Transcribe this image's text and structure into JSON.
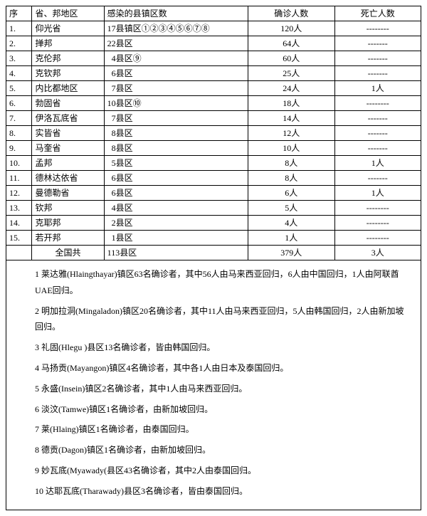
{
  "headers": {
    "seq": "序",
    "region": "省、邦地区",
    "infected": "感染的县镇区数",
    "confirmed": "确诊人数",
    "deaths": "死亡人数"
  },
  "rows": [
    {
      "seq": "1.",
      "region": "仰光省",
      "infected": "17县镇区①②③④⑤⑥⑦⑧",
      "confirmed": "120人",
      "deaths": "--------"
    },
    {
      "seq": "2.",
      "region": "掸邦",
      "infected": "22县区",
      "confirmed": "64人",
      "deaths": "-------"
    },
    {
      "seq": "3.",
      "region": "克伦邦",
      "infected": "  4县区⑨",
      "confirmed": "60人",
      "deaths": "-------"
    },
    {
      "seq": "4.",
      "region": "克钦邦",
      "infected": "  6县区",
      "confirmed": "25人",
      "deaths": "-------"
    },
    {
      "seq": "5.",
      "region": "内比都地区",
      "infected": "  7县区",
      "confirmed": "24人",
      "deaths": "1人"
    },
    {
      "seq": "6.",
      "region": "勃固省",
      "infected": "10县区⑩",
      "confirmed": "18人",
      "deaths": "--------"
    },
    {
      "seq": "7.",
      "region": "伊洛瓦底省",
      "infected": "  7县区",
      "confirmed": "14人",
      "deaths": "-------"
    },
    {
      "seq": "8.",
      "region": "实皆省",
      "infected": "  8县区",
      "confirmed": "12人",
      "deaths": "-------"
    },
    {
      "seq": "9.",
      "region": "马奎省",
      "infected": "  8县区",
      "confirmed": "10人",
      "deaths": "-------"
    },
    {
      "seq": "10.",
      "region": "孟邦",
      "infected": "  5县区",
      "confirmed": "8人",
      "deaths": "1人"
    },
    {
      "seq": "11.",
      "region": "德林达依省",
      "infected": "  6县区",
      "confirmed": "8人",
      "deaths": "-------"
    },
    {
      "seq": "12.",
      "region": "曼德勒省",
      "infected": "  6县区",
      "confirmed": "6人",
      "deaths": "1人"
    },
    {
      "seq": "13.",
      "region": "钦邦",
      "infected": "  4县区",
      "confirmed": "5人",
      "deaths": "--------"
    },
    {
      "seq": "14.",
      "region": "克耶邦",
      "infected": "  2县区",
      "confirmed": "4人",
      "deaths": "--------"
    },
    {
      "seq": "15.",
      "region": "若开邦",
      "infected": "  1县区",
      "confirmed": "1人",
      "deaths": "--------"
    }
  ],
  "total": {
    "seq": "",
    "region": "全国共",
    "infected": "113县区",
    "confirmed": "379人",
    "deaths": "3人"
  },
  "notes": [
    "1 莱达雅(Hlaingthayar)镇区63名确诊者，其中56人由马来西亚回归，6人由中国回归，1人由阿联酋UAE回归。",
    "2 明加拉洞(Mingaladon)镇区20名确诊者，其中11人由马来西亚回归，5人由韩国回归，2人由新加坡回归。",
    "3 礼固(Hlegu )县区13名确诊者，皆由韩国回归。",
    "4 马扬贡(Mayangon)镇区4名确诊者，其中各1人由日本及泰国回归。",
    "5 永盛(Insein)镇区2名确诊者，其中1人由马来西亚回归。",
    "6 淡汶(Tamwe)镇区1名确诊者，由新加坡回归。",
    "7 莱(Hlaing)镇区1名确诊者，由泰国回归。",
    "8 德贡(Dagon)镇区1名确诊者，由新加坡回归。",
    "9 妙瓦底(Myawady(县区43名确诊者，其中2人由泰国回归。",
    "10 达耶瓦底(Tharawady)县区3名确诊者，皆由泰国回归。"
  ]
}
